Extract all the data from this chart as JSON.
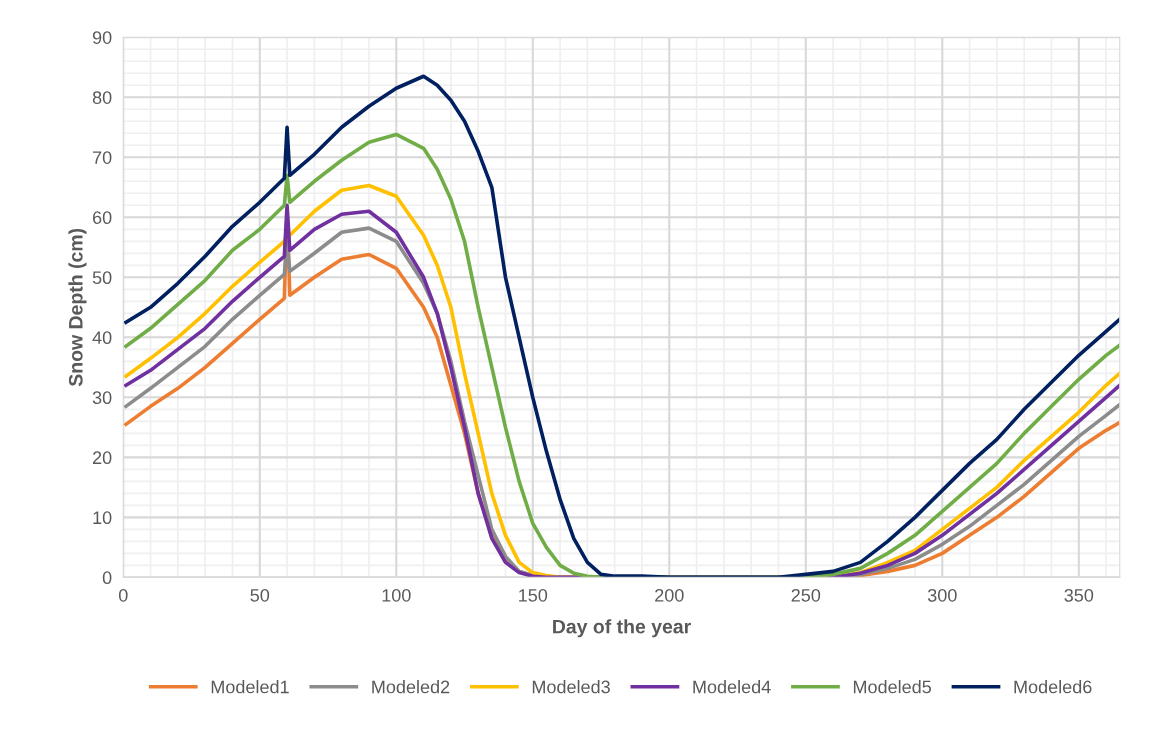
{
  "chart_data": {
    "type": "line",
    "xlabel": "Day of the year",
    "ylabel": "Snow Depth (cm)",
    "xlim": [
      0,
      365
    ],
    "xticks": [
      0,
      50,
      100,
      150,
      200,
      250,
      300,
      350
    ],
    "ylim": [
      0,
      90
    ],
    "yticks": [
      0,
      10,
      20,
      30,
      40,
      50,
      60,
      70,
      80,
      90
    ],
    "grid": true,
    "legend": "bottom",
    "marker": "none",
    "line_style": "solid",
    "series": [
      {
        "name": "Modeled1",
        "color": "#ed7d31",
        "x": [
          1,
          10,
          20,
          30,
          40,
          50,
          59,
          60,
          61,
          70,
          80,
          90,
          100,
          110,
          115,
          120,
          125,
          130,
          135,
          140,
          145,
          150,
          155,
          260,
          270,
          280,
          290,
          300,
          310,
          320,
          330,
          340,
          350,
          360,
          365
        ],
        "values": [
          25.5,
          28.5,
          31.5,
          35,
          39,
          43,
          46.5,
          61.5,
          47,
          50,
          53,
          53.8,
          51.5,
          45,
          40,
          32,
          24,
          14,
          7,
          3,
          1,
          0.3,
          0,
          0,
          0.3,
          1,
          2,
          4,
          7,
          10,
          13.5,
          17.5,
          21.5,
          24.5,
          25.8
        ]
      },
      {
        "name": "Modeled2",
        "color": "#8c8c8c",
        "x": [
          1,
          10,
          20,
          30,
          40,
          50,
          59,
          60,
          61,
          70,
          80,
          90,
          100,
          110,
          115,
          120,
          125,
          130,
          135,
          140,
          145,
          150,
          155,
          260,
          270,
          280,
          290,
          300,
          310,
          320,
          330,
          340,
          350,
          360,
          365
        ],
        "values": [
          28.5,
          31.5,
          35,
          38.5,
          43,
          47,
          50.5,
          56,
          51,
          54,
          57.5,
          58.2,
          56,
          49,
          44,
          36,
          26,
          17,
          8,
          3.5,
          1,
          0.3,
          0,
          0,
          0.5,
          1.5,
          3,
          5.5,
          8.5,
          12,
          15.5,
          19.5,
          23.5,
          27,
          28.8
        ]
      },
      {
        "name": "Modeled3",
        "color": "#ffc000",
        "x": [
          1,
          10,
          20,
          30,
          40,
          50,
          59,
          60,
          61,
          70,
          80,
          90,
          100,
          110,
          115,
          120,
          125,
          130,
          135,
          140,
          145,
          150,
          155,
          160,
          260,
          270,
          280,
          290,
          300,
          310,
          320,
          330,
          340,
          350,
          360,
          365
        ],
        "values": [
          33.5,
          36.5,
          40,
          44,
          48.5,
          52.5,
          56,
          57,
          57,
          61,
          64.5,
          65.3,
          63.5,
          57,
          52,
          45,
          34,
          24,
          14,
          7,
          2.5,
          0.8,
          0.3,
          0,
          0,
          0.8,
          2.5,
          4.5,
          8,
          11.5,
          15,
          19.5,
          23.5,
          27.5,
          32,
          34
        ]
      },
      {
        "name": "Modeled4",
        "color": "#7030a0",
        "x": [
          1,
          10,
          20,
          30,
          40,
          50,
          59,
          60,
          61,
          70,
          80,
          90,
          100,
          110,
          115,
          120,
          125,
          130,
          135,
          140,
          145,
          150,
          155,
          260,
          270,
          280,
          290,
          300,
          310,
          320,
          330,
          340,
          350,
          360,
          365
        ],
        "values": [
          32,
          34.5,
          38,
          41.5,
          46,
          50,
          53.5,
          62,
          54.5,
          58,
          60.5,
          61,
          57.5,
          50,
          44,
          35,
          25,
          14,
          6.5,
          2.5,
          0.8,
          0.2,
          0,
          0,
          0.7,
          2,
          4,
          7,
          10.5,
          14,
          18,
          22,
          26,
          30,
          32
        ]
      },
      {
        "name": "Modeled5",
        "color": "#70ad47",
        "x": [
          1,
          10,
          20,
          30,
          40,
          50,
          59,
          60,
          61,
          70,
          80,
          90,
          100,
          110,
          115,
          120,
          125,
          130,
          135,
          140,
          145,
          150,
          155,
          160,
          165,
          170,
          175,
          250,
          260,
          270,
          280,
          290,
          300,
          310,
          320,
          330,
          340,
          350,
          360,
          365
        ],
        "values": [
          38.5,
          41.5,
          45.5,
          49.5,
          54.5,
          58,
          62,
          67,
          62.5,
          66,
          69.5,
          72.5,
          73.8,
          71.5,
          68,
          63,
          56,
          45,
          35,
          25,
          16,
          9,
          5,
          2,
          0.7,
          0.2,
          0,
          0,
          0.5,
          1.5,
          4,
          7,
          11,
          15,
          19,
          24,
          28.5,
          33,
          37,
          38.7
        ]
      },
      {
        "name": "Modeled6",
        "color": "#002060",
        "x": [
          1,
          10,
          20,
          30,
          40,
          50,
          59,
          60,
          61,
          70,
          80,
          90,
          100,
          110,
          115,
          120,
          125,
          130,
          135,
          140,
          145,
          150,
          155,
          160,
          165,
          170,
          175,
          180,
          190,
          200,
          240,
          250,
          260,
          270,
          280,
          290,
          300,
          310,
          320,
          330,
          340,
          350,
          360,
          365
        ],
        "values": [
          42.5,
          45,
          49,
          53.5,
          58.5,
          62.5,
          66.5,
          75,
          67,
          70.5,
          75,
          78.5,
          81.5,
          83.5,
          82,
          79.5,
          76,
          71,
          65,
          50,
          40,
          30,
          21,
          13,
          6.5,
          2.5,
          0.5,
          0.2,
          0.2,
          0,
          0,
          0.5,
          1,
          2.5,
          6,
          10,
          14.5,
          19,
          23,
          28,
          32.5,
          37,
          41,
          43
        ]
      }
    ]
  }
}
